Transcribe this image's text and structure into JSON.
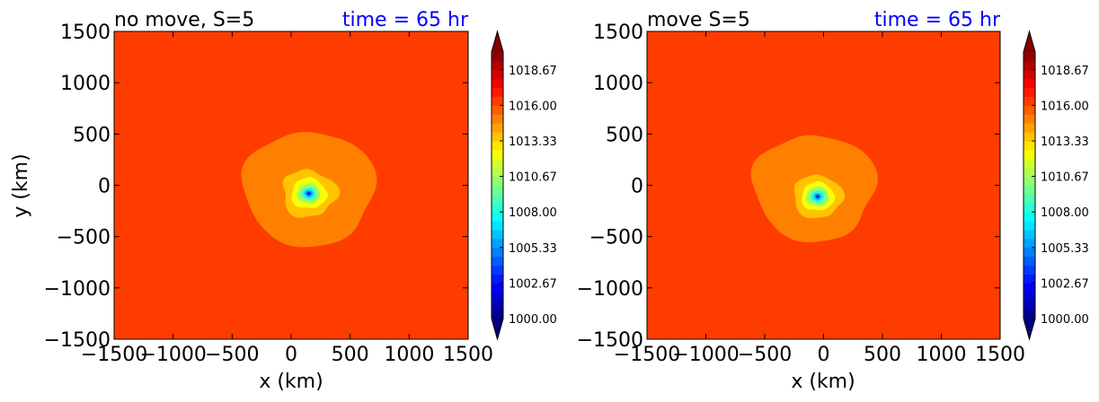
{
  "chart_data": [
    {
      "type": "heatmap",
      "title_left": "no move, S=5",
      "title_right": "time = 65 hr",
      "xlabel": "x (km)",
      "ylabel": "y (km)",
      "xlim": [
        -1500,
        1500
      ],
      "ylim": [
        -1500,
        1500
      ],
      "xticks": [
        -1500,
        -1000,
        -500,
        0,
        500,
        1000,
        1500
      ],
      "yticks": [
        -1500,
        -1000,
        -500,
        0,
        500,
        1000,
        1500
      ],
      "xtick_labels": [
        "−1500",
        "−1000",
        "−500",
        "0",
        "500",
        "1000",
        "1500"
      ],
      "ytick_labels": [
        "−1500",
        "−1000",
        "−500",
        "0",
        "500",
        "1000",
        "1500"
      ],
      "background_value": 1016.3,
      "center": [
        150,
        -80
      ],
      "rings": [
        {
          "level": 1015.0,
          "r": 560,
          "cx": 150,
          "cy": -30,
          "blob": 0.08
        },
        {
          "level": 1013.5,
          "r": 230,
          "cx": 150,
          "cy": -80,
          "blob": 0.18
        },
        {
          "level": 1012.0,
          "r": 150,
          "cx": 150,
          "cy": -80,
          "blob": 0.12
        },
        {
          "level": 1010.5,
          "r": 95,
          "cx": 150,
          "cy": -80,
          "blob": 0.1
        },
        {
          "level": 1008.5,
          "r": 60,
          "cx": 150,
          "cy": -80,
          "blob": 0.08
        },
        {
          "level": 1006.5,
          "r": 38,
          "cx": 150,
          "cy": -80,
          "blob": 0.05
        },
        {
          "level": 1004.0,
          "r": 22,
          "cx": 150,
          "cy": -80,
          "blob": 0.0
        },
        {
          "level": 1001.5,
          "r": 11,
          "cx": 150,
          "cy": -80,
          "blob": 0.0
        }
      ]
    },
    {
      "type": "heatmap",
      "title_left": "move S=5",
      "title_right": "time = 65 hr",
      "xlabel": "x (km)",
      "ylabel": "",
      "xlim": [
        -1500,
        1500
      ],
      "ylim": [
        -1500,
        1500
      ],
      "xticks": [
        -1500,
        -1000,
        -500,
        0,
        500,
        1000,
        1500
      ],
      "yticks": [
        -1500,
        -1000,
        -500,
        0,
        500,
        1000,
        1500
      ],
      "xtick_labels": [
        "−1500",
        "−1000",
        "−500",
        "0",
        "500",
        "1000",
        "1500"
      ],
      "ytick_labels": [
        "−1500",
        "−1000",
        "−500",
        "0",
        "500",
        "1000",
        "1500"
      ],
      "background_value": 1016.3,
      "center": [
        -50,
        -110
      ],
      "rings": [
        {
          "level": 1015.0,
          "r": 520,
          "cx": -80,
          "cy": -20,
          "blob": 0.1
        },
        {
          "level": 1013.5,
          "r": 210,
          "cx": -50,
          "cy": -110,
          "blob": 0.12
        },
        {
          "level": 1012.0,
          "r": 140,
          "cx": -50,
          "cy": -110,
          "blob": 0.1
        },
        {
          "level": 1010.5,
          "r": 95,
          "cx": -50,
          "cy": -110,
          "blob": 0.08
        },
        {
          "level": 1008.5,
          "r": 60,
          "cx": -50,
          "cy": -110,
          "blob": 0.06
        },
        {
          "level": 1006.5,
          "r": 36,
          "cx": -50,
          "cy": -110,
          "blob": 0.04
        },
        {
          "level": 1004.0,
          "r": 20,
          "cx": -50,
          "cy": -110,
          "blob": 0.0
        },
        {
          "level": 1001.5,
          "r": 10,
          "cx": -50,
          "cy": -110,
          "blob": 0.0
        }
      ]
    }
  ],
  "colorbar": {
    "vmin": 1000.0,
    "vmax": 1020.0,
    "levels": 30,
    "extend": "both",
    "tick_values": [
      1000.0,
      1002.67,
      1005.33,
      1008.0,
      1010.67,
      1013.33,
      1016.0,
      1018.67
    ],
    "tick_labels": [
      "1000.00",
      "1002.67",
      "1005.33",
      "1008.00",
      "1010.67",
      "1013.33",
      "1016.00",
      "1018.67"
    ],
    "under_color": "#00007f",
    "over_color": "#7f0000"
  },
  "colors": {
    "left_title": "#000000",
    "right_title": "#0000ff"
  }
}
